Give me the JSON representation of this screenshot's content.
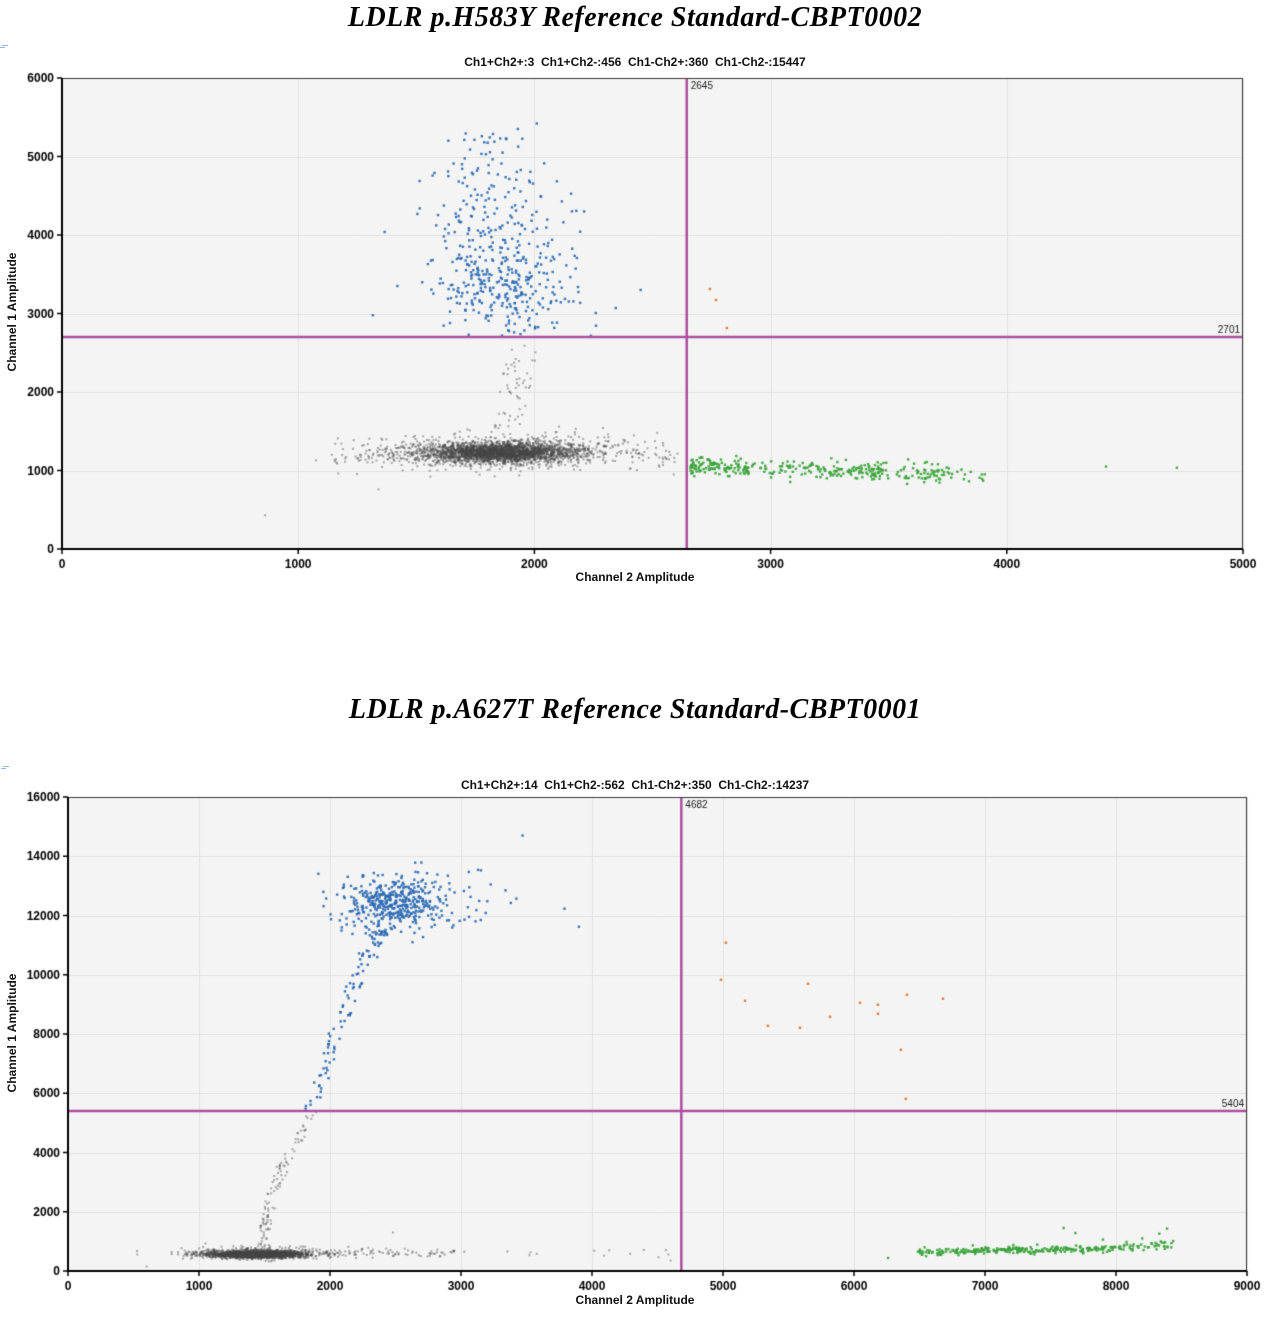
{
  "chart_data": [
    {
      "type": "scatter",
      "title": "LDLR p.H583Y Reference Standard-CBPT0002",
      "subtitle": "Ch1+Ch2+:3  Ch1+Ch2-:456  Ch1-Ch2+:360  Ch1-Ch2-:15447",
      "xlabel": "Channel 2 Amplitude",
      "ylabel": "Channel 1 Amplitude",
      "xlim": [
        0,
        5000
      ],
      "ylim": [
        0,
        6000
      ],
      "xticks": [
        0,
        1000,
        2000,
        3000,
        4000,
        5000
      ],
      "yticks": [
        0,
        1000,
        2000,
        3000,
        4000,
        5000,
        6000
      ],
      "grid": true,
      "thresholds": {
        "ch2_threshold": 2645,
        "ch1_threshold": 2701
      },
      "threshold_labels": {
        "vertical": "2645",
        "horizontal": "2701"
      },
      "counts": {
        "ch1pos_ch2pos": 3,
        "ch1pos_ch2neg": 456,
        "ch1neg_ch2pos": 360,
        "ch1neg_ch2neg": 15447
      },
      "colors": {
        "neg": "#474747",
        "ch1": "#2b6ab4",
        "ch2": "#3ba43b",
        "pos": "#df7226",
        "threshold": "#ad4fa0",
        "plot_bg": "#f4f4f4",
        "grid": "#e2e2e2",
        "border": "#3a3a3a"
      },
      "clusters": [
        {
          "pop": "neg",
          "type": "gauss",
          "n": 2000,
          "cx": 1860,
          "cy": 1230,
          "sx": 150,
          "sy": 60
        },
        {
          "pop": "neg",
          "type": "gauss",
          "n": 900,
          "cx": 1840,
          "cy": 1230,
          "sx": 230,
          "sy": 85
        },
        {
          "pop": "neg",
          "type": "gauss",
          "n": 350,
          "cx": 1820,
          "cy": 1235,
          "sx": 330,
          "sy": 110
        },
        {
          "pop": "neg",
          "type": "hband",
          "n": 50,
          "x0": 2150,
          "x1": 2620,
          "y0": 1200,
          "y1": 1120,
          "sy": 90
        },
        {
          "pop": "neg",
          "type": "hband",
          "n": 25,
          "x0": 1150,
          "x1": 1500,
          "y0": 1130,
          "y1": 1180,
          "sy": 85
        },
        {
          "pop": "neg",
          "type": "vtrail",
          "n": 55,
          "x0": 1880,
          "y0": 1480,
          "x1": 1960,
          "y1": 2690,
          "xjit": 130,
          "yjit": 100
        },
        {
          "pop": "neg",
          "type": "points",
          "pts": [
            [
              860,
              430
            ],
            [
              1340,
              760
            ],
            [
              2590,
              950
            ],
            [
              2520,
              1480
            ]
          ]
        },
        {
          "pop": "ch1",
          "type": "gauss",
          "n": 240,
          "cx": 1860,
          "cy": 3350,
          "sx": 140,
          "sy": 280
        },
        {
          "pop": "ch1",
          "type": "gauss",
          "n": 130,
          "cx": 1840,
          "cy": 4000,
          "sx": 150,
          "sy": 330
        },
        {
          "pop": "ch1",
          "type": "gauss",
          "n": 60,
          "cx": 1820,
          "cy": 4750,
          "sx": 130,
          "sy": 280
        },
        {
          "pop": "ch1",
          "type": "gauss",
          "n": 15,
          "cx": 1800,
          "cy": 5200,
          "sx": 80,
          "sy": 130
        },
        {
          "pop": "ch1",
          "type": "hband",
          "n": 16,
          "x0": 1700,
          "x1": 2350,
          "y0": 2850,
          "y1": 2800,
          "sy": 110
        },
        {
          "pop": "ch1",
          "type": "points",
          "pts": [
            [
              1420,
              3350
            ],
            [
              2010,
              5420
            ],
            [
              1930,
              5350
            ],
            [
              2450,
              3300
            ]
          ]
        },
        {
          "pop": "ch2",
          "type": "hband",
          "n": 290,
          "x0": 2660,
          "x1": 3720,
          "y0": 1050,
          "y1": 965,
          "sy": 55,
          "pow": 1.3
        },
        {
          "pop": "ch2",
          "type": "hband",
          "n": 50,
          "x0": 3250,
          "x1": 3950,
          "y0": 990,
          "y1": 930,
          "sy": 70
        },
        {
          "pop": "ch2",
          "type": "points",
          "pts": [
            [
              4420,
              1050
            ],
            [
              4720,
              1035
            ],
            [
              2700,
              1160
            ],
            [
              3900,
              870
            ]
          ]
        },
        {
          "pop": "pos",
          "type": "points",
          "pts": [
            [
              2743,
              3312
            ],
            [
              2769,
              3172
            ],
            [
              2815,
              2815
            ]
          ]
        }
      ]
    },
    {
      "type": "scatter",
      "title": "LDLR p.A627T Reference Standard-CBPT0001",
      "subtitle": "Ch1+Ch2+:14  Ch1+Ch2-:562  Ch1-Ch2+:350  Ch1-Ch2-:14237",
      "xlabel": "Channel 2 Amplitude",
      "ylabel": "Channel 1 Amplitude",
      "xlim": [
        0,
        9000
      ],
      "ylim": [
        0,
        16000
      ],
      "xticks": [
        0,
        1000,
        2000,
        3000,
        4000,
        5000,
        6000,
        7000,
        8000,
        9000
      ],
      "yticks": [
        0,
        2000,
        4000,
        6000,
        8000,
        10000,
        12000,
        14000,
        16000
      ],
      "grid": true,
      "thresholds": {
        "ch2_threshold": 4682,
        "ch1_threshold": 5404
      },
      "threshold_labels": {
        "vertical": "4682",
        "horizontal": "5404"
      },
      "counts": {
        "ch1pos_ch2pos": 14,
        "ch1pos_ch2neg": 562,
        "ch1neg_ch2pos": 350,
        "ch1neg_ch2neg": 14237
      },
      "colors": {
        "neg": "#474747",
        "ch1": "#2b6ab4",
        "ch2": "#3ba43b",
        "pos": "#df7226",
        "threshold": "#ad4fa0",
        "plot_bg": "#f4f4f4",
        "grid": "#e2e2e2",
        "border": "#3a3a3a"
      },
      "clusters": [
        {
          "pop": "neg",
          "type": "gauss",
          "n": 2000,
          "cx": 1430,
          "cy": 560,
          "sx": 140,
          "sy": 50
        },
        {
          "pop": "neg",
          "type": "gauss",
          "n": 800,
          "cx": 1450,
          "cy": 580,
          "sx": 220,
          "sy": 75
        },
        {
          "pop": "neg",
          "type": "gauss",
          "n": 250,
          "cx": 1470,
          "cy": 600,
          "sx": 320,
          "sy": 100
        },
        {
          "pop": "neg",
          "type": "hband",
          "n": 70,
          "x0": 1950,
          "x1": 2950,
          "y0": 620,
          "y1": 600,
          "sy": 70
        },
        {
          "pop": "neg",
          "type": "hband",
          "n": 14,
          "x0": 3000,
          "x1": 4650,
          "y0": 620,
          "y1": 580,
          "sy": 80
        },
        {
          "pop": "neg",
          "type": "vtrail",
          "n": 42,
          "x0": 1490,
          "y0": 780,
          "x1": 1530,
          "y1": 2100,
          "xjit": 90,
          "yjit": 150
        },
        {
          "pop": "neg",
          "type": "vtrail",
          "n": 34,
          "x0": 1530,
          "y0": 2100,
          "x1": 1640,
          "y1": 3600,
          "xjit": 100,
          "yjit": 150
        },
        {
          "pop": "neg",
          "type": "vtrail",
          "n": 20,
          "x0": 1660,
          "y0": 3600,
          "x1": 1790,
          "y1": 4700,
          "xjit": 90,
          "yjit": 150
        },
        {
          "pop": "neg",
          "type": "vtrail",
          "n": 10,
          "x0": 1800,
          "y0": 4700,
          "x1": 1860,
          "y1": 5350,
          "xjit": 80,
          "yjit": 100
        },
        {
          "pop": "neg",
          "type": "points",
          "pts": [
            [
              600,
              150
            ],
            [
              1050,
              930
            ],
            [
              2480,
              1300
            ]
          ]
        },
        {
          "pop": "ch1",
          "type": "vtrail",
          "n": 13,
          "x0": 1850,
          "y0": 5460,
          "x1": 1950,
          "y1": 6600,
          "xjit": 90,
          "yjit": 150
        },
        {
          "pop": "ch1",
          "type": "vtrail",
          "n": 22,
          "x0": 1950,
          "y0": 6600,
          "x1": 2060,
          "y1": 8400,
          "xjit": 100,
          "yjit": 200
        },
        {
          "pop": "ch1",
          "type": "vtrail",
          "n": 30,
          "x0": 2080,
          "y0": 8400,
          "x1": 2260,
          "y1": 10400,
          "xjit": 120,
          "yjit": 250
        },
        {
          "pop": "ch1",
          "type": "vtrail",
          "n": 42,
          "x0": 2260,
          "y0": 10400,
          "x1": 2420,
          "y1": 11700,
          "xjit": 140,
          "yjit": 300
        },
        {
          "pop": "ch1",
          "type": "gauss",
          "n": 280,
          "cx": 2500,
          "cy": 12450,
          "sx": 170,
          "sy": 380
        },
        {
          "pop": "ch1",
          "type": "gauss",
          "n": 140,
          "cx": 2620,
          "cy": 12500,
          "sx": 300,
          "sy": 520
        },
        {
          "pop": "ch1",
          "type": "gauss",
          "n": 28,
          "cx": 2250,
          "cy": 11900,
          "sx": 120,
          "sy": 420
        },
        {
          "pop": "ch1",
          "type": "points",
          "pts": [
            [
              3470,
              14700
            ],
            [
              3790,
              12230
            ],
            [
              3900,
              11620
            ],
            [
              3060,
              13470
            ],
            [
              3130,
              13540
            ]
          ]
        },
        {
          "pop": "ch2",
          "type": "hband",
          "n": 270,
          "x0": 6480,
          "x1": 8060,
          "y0": 640,
          "y1": 760,
          "sy": 55
        },
        {
          "pop": "ch2",
          "type": "hband",
          "n": 40,
          "x0": 8060,
          "x1": 8460,
          "y0": 800,
          "y1": 900,
          "sy": 85
        },
        {
          "pop": "ch2",
          "type": "points",
          "pts": [
            [
              6260,
              440
            ],
            [
              7600,
              1450
            ],
            [
              7690,
              1280
            ],
            [
              8200,
              1100
            ],
            [
              8330,
              1260
            ],
            [
              8390,
              1430
            ],
            [
              7900,
              1060
            ]
          ]
        },
        {
          "pop": "pos",
          "type": "points",
          "pts": [
            [
              5022,
              11081
            ],
            [
              4985,
              9831
            ],
            [
              5168,
              9122
            ],
            [
              5343,
              8277
            ],
            [
              5588,
              8209
            ],
            [
              5649,
              9696
            ],
            [
              5817,
              8581
            ],
            [
              6046,
              9054
            ],
            [
              6183,
              8986
            ],
            [
              6183,
              8682
            ],
            [
              6404,
              9324
            ],
            [
              6679,
              9189
            ],
            [
              6358,
              7466
            ],
            [
              6396,
              5811
            ]
          ]
        }
      ]
    }
  ]
}
